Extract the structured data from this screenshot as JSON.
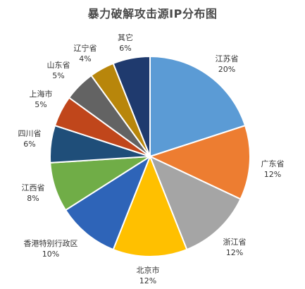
{
  "chart_data": {
    "type": "pie",
    "title": "暴力破解攻击源IP分布图",
    "slices": [
      {
        "label": "江苏省",
        "value": 20,
        "pct_label": "20%",
        "color": "#5b9bd5",
        "name": "slice-jiangsu"
      },
      {
        "label": "广东省",
        "value": 12,
        "pct_label": "12%",
        "color": "#ed7d31",
        "name": "slice-guangdong"
      },
      {
        "label": "浙江省",
        "value": 12,
        "pct_label": "12%",
        "color": "#a5a5a5",
        "name": "slice-zhejiang"
      },
      {
        "label": "北京市",
        "value": 12,
        "pct_label": "12%",
        "color": "#ffc000",
        "name": "slice-beijing"
      },
      {
        "label": "香港特别行政区",
        "value": 10,
        "pct_label": "10%",
        "color": "#2e64b8",
        "name": "slice-hongkong"
      },
      {
        "label": "江西省",
        "value": 8,
        "pct_label": "8%",
        "color": "#70ad47",
        "name": "slice-jiangxi"
      },
      {
        "label": "四川省",
        "value": 6,
        "pct_label": "6%",
        "color": "#1f4e79",
        "name": "slice-sichuan"
      },
      {
        "label": "上海市",
        "value": 5,
        "pct_label": "5%",
        "color": "#c0461b",
        "name": "slice-shanghai"
      },
      {
        "label": "山东省",
        "value": 5,
        "pct_label": "5%",
        "color": "#636363",
        "name": "slice-shandong"
      },
      {
        "label": "辽宁省",
        "value": 4,
        "pct_label": "4%",
        "color": "#b8860b",
        "name": "slice-liaoning"
      },
      {
        "label": "其它",
        "value": 6,
        "pct_label": "6%",
        "color": "#1f3a6e",
        "name": "slice-other"
      }
    ],
    "start_angle": "12 o'clock",
    "direction": "clockwise",
    "legend": "none",
    "labels": "outside slices, name above percentage"
  }
}
